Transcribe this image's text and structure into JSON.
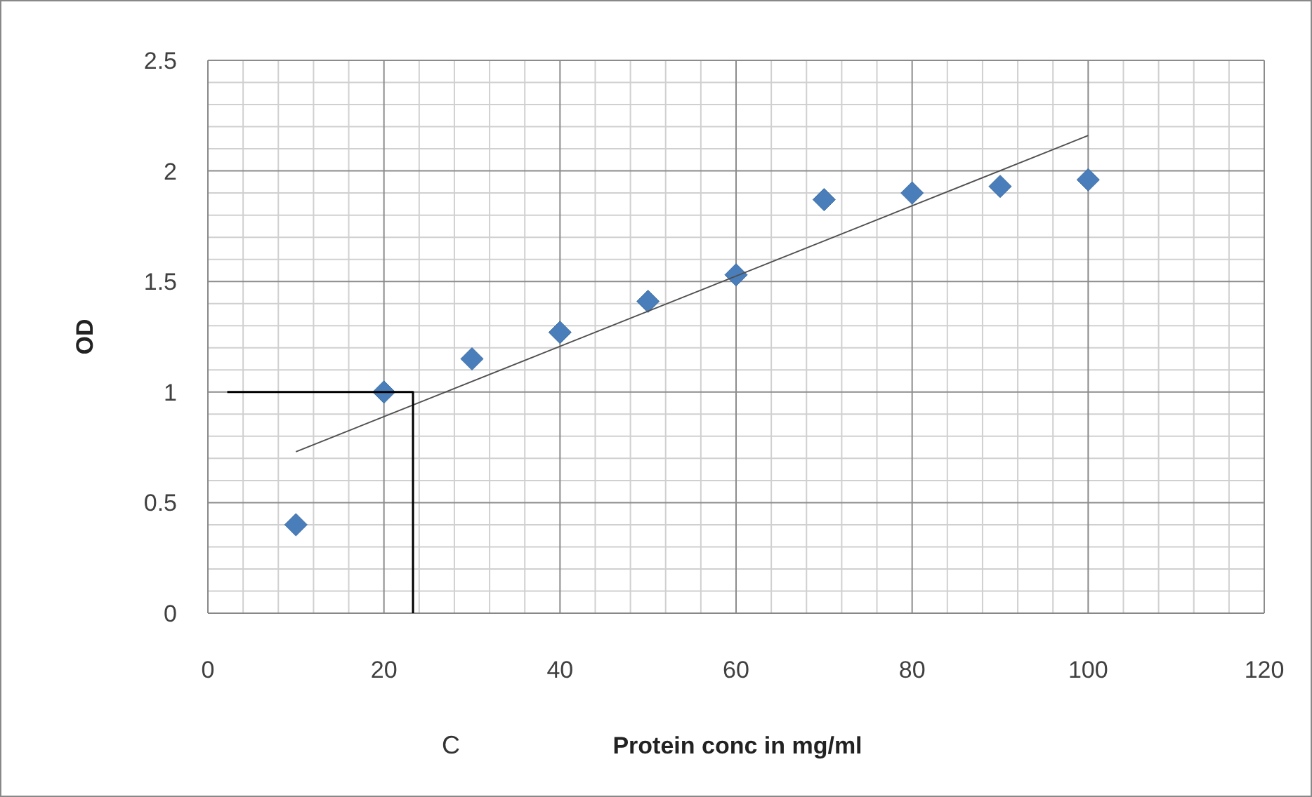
{
  "chart_data": {
    "type": "scatter",
    "xlabel": "Protein conc in mg/ml",
    "ylabel": "OD",
    "annotations": [
      "C"
    ],
    "xlim": [
      0,
      120
    ],
    "xticks": [
      0,
      20,
      40,
      60,
      80,
      100,
      120
    ],
    "ylim": [
      0,
      2.5
    ],
    "yticks": [
      0,
      {
        "value": 0.5,
        "label": "0.5"
      },
      1,
      {
        "value": 1.5,
        "label": "1.5"
      },
      2,
      {
        "value": 2.5,
        "label": "2.5"
      }
    ],
    "grid": true,
    "series": [
      {
        "color": "#4a7ebb",
        "marker": "diamond",
        "x": [
          10,
          20,
          30,
          40,
          50,
          60,
          70,
          80,
          90,
          100
        ],
        "values": [
          0.4,
          1.0,
          1.15,
          1.27,
          1.41,
          1.53,
          1.87,
          1.9,
          1.93,
          1.96
        ]
      },
      {
        "type": "line",
        "color": "#505050",
        "marker": "none",
        "x": [
          10,
          100
        ],
        "values": [
          0.73,
          2.16
        ]
      },
      {
        "type": "line",
        "color": "#000000",
        "marker": "none",
        "x": [
          2.2,
          23.3,
          23.3
        ],
        "values": [
          1,
          1,
          0
        ]
      }
    ]
  }
}
